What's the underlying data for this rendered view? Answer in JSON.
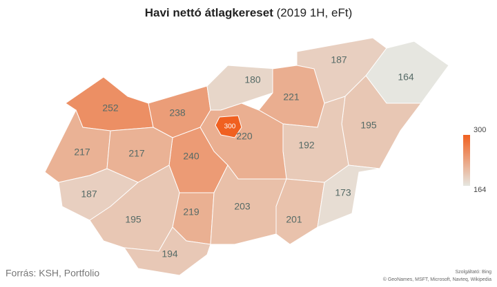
{
  "chart_data": {
    "type": "choropleth",
    "title": "Havi nettó átlagkereset",
    "subtitle": "(2019 1H, eFt)",
    "values": [
      300,
      252,
      238,
      180,
      187,
      221,
      164,
      195,
      192,
      220,
      240,
      217,
      217,
      187,
      195,
      219,
      194,
      203,
      201,
      173
    ],
    "scale": [
      164,
      300
    ],
    "colors": [
      "#e6e6e0",
      "#f06020"
    ],
    "source": "Forrás: KSH, Portfolio",
    "provider": "Szolgáltató: Bing",
    "attribution": "© GeoNames, MSFT, Microsoft, Navteq, Wikipedia"
  }
}
